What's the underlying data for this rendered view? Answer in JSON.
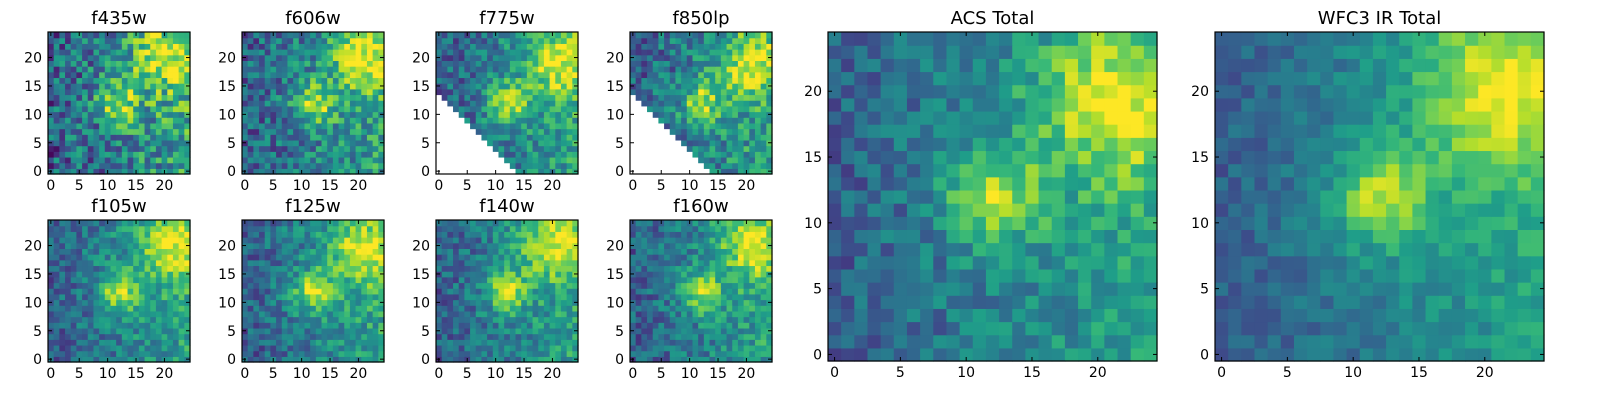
{
  "colormap": "viridis",
  "colormap_stops": [
    "#440154",
    "#482878",
    "#3e4989",
    "#31688e",
    "#26828e",
    "#1f9e89",
    "#35b779",
    "#6ece58",
    "#b5de2b",
    "#fde725"
  ],
  "chart_data": [
    {
      "type": "heatmap",
      "title": "f435w",
      "grid_size": 25,
      "xlim": [
        0,
        24
      ],
      "ylim": [
        0,
        24
      ],
      "xticks": [
        0,
        5,
        10,
        15,
        20
      ],
      "yticks": [
        0,
        5,
        10,
        15,
        20
      ],
      "xtick_labels": [
        "0",
        "5",
        "10",
        "15",
        "20"
      ],
      "ytick_labels": [
        "0",
        "5",
        "10",
        "15",
        "20"
      ],
      "features": {
        "blob": [
          12,
          12,
          2.5
        ],
        "hotspot": [
          20,
          20,
          4
        ],
        "noise": 0.55,
        "masked_triangle": false
      },
      "values_note": "noisy field, bright blob near (12,12) and bright region near (20,20)"
    },
    {
      "type": "heatmap",
      "title": "f606w",
      "grid_size": 25,
      "xlim": [
        0,
        24
      ],
      "ylim": [
        0,
        24
      ],
      "xticks": [
        0,
        5,
        10,
        15,
        20
      ],
      "yticks": [
        0,
        5,
        10,
        15,
        20
      ],
      "xtick_labels": [
        "0",
        "5",
        "10",
        "15",
        "20"
      ],
      "ytick_labels": [
        "0",
        "5",
        "10",
        "15",
        "20"
      ],
      "features": {
        "blob": [
          12,
          12,
          2.5
        ],
        "hotspot": [
          21,
          20,
          4
        ],
        "noise": 0.45,
        "masked_triangle": false
      },
      "values_note": "bright blob near (12,12), bright region upper right"
    },
    {
      "type": "heatmap",
      "title": "f775w",
      "grid_size": 25,
      "xlim": [
        0,
        24
      ],
      "ylim": [
        0,
        24
      ],
      "xticks": [
        0,
        5,
        10,
        15,
        20
      ],
      "yticks": [
        0,
        5,
        10,
        15,
        20
      ],
      "xtick_labels": [
        "0",
        "5",
        "10",
        "15",
        "20"
      ],
      "ytick_labels": [
        "0",
        "5",
        "10",
        "15",
        "20"
      ],
      "features": {
        "blob": [
          12,
          12,
          2.5
        ],
        "hotspot": [
          21,
          19,
          4
        ],
        "noise": 0.4,
        "masked_triangle": true
      },
      "values_note": "lower-left triangle masked (blank), blob near (12,12)"
    },
    {
      "type": "heatmap",
      "title": "f850lp",
      "grid_size": 25,
      "xlim": [
        0,
        24
      ],
      "ylim": [
        0,
        24
      ],
      "xticks": [
        0,
        5,
        10,
        15,
        20
      ],
      "yticks": [
        0,
        5,
        10,
        15,
        20
      ],
      "xtick_labels": [
        "0",
        "5",
        "10",
        "15",
        "20"
      ],
      "ytick_labels": [
        "0",
        "5",
        "10",
        "15",
        "20"
      ],
      "features": {
        "blob": [
          12,
          12,
          2.5
        ],
        "hotspot": [
          21,
          19,
          4
        ],
        "noise": 0.45,
        "masked_triangle": true
      },
      "values_note": "lower-left triangle masked (blank), mostly bright field"
    },
    {
      "type": "heatmap",
      "title": "f105w",
      "grid_size": 25,
      "xlim": [
        0,
        24
      ],
      "ylim": [
        0,
        24
      ],
      "xticks": [
        0,
        5,
        10,
        15,
        20
      ],
      "yticks": [
        0,
        5,
        10,
        15,
        20
      ],
      "xtick_labels": [
        "0",
        "5",
        "10",
        "15",
        "20"
      ],
      "ytick_labels": [
        "0",
        "5",
        "10",
        "15",
        "20"
      ],
      "features": {
        "blob": [
          12,
          12,
          2.5
        ],
        "hotspot": [
          21,
          20,
          4
        ],
        "noise": 0.35,
        "masked_triangle": false
      },
      "values_note": "bright blob near (12,12), bright region upper right, dark lower left"
    },
    {
      "type": "heatmap",
      "title": "f125w",
      "grid_size": 25,
      "xlim": [
        0,
        24
      ],
      "ylim": [
        0,
        24
      ],
      "xticks": [
        0,
        5,
        10,
        15,
        20
      ],
      "yticks": [
        0,
        5,
        10,
        15,
        20
      ],
      "xtick_labels": [
        "0",
        "5",
        "10",
        "15",
        "20"
      ],
      "ytick_labels": [
        "0",
        "5",
        "10",
        "15",
        "20"
      ],
      "features": {
        "blob": [
          12,
          12,
          2.5
        ],
        "hotspot": [
          21,
          19,
          4
        ],
        "noise": 0.35,
        "masked_triangle": false
      },
      "values_note": "diffuse bright field, hotspot upper right"
    },
    {
      "type": "heatmap",
      "title": "f140w",
      "grid_size": 25,
      "xlim": [
        0,
        24
      ],
      "ylim": [
        0,
        24
      ],
      "xticks": [
        0,
        5,
        10,
        15,
        20
      ],
      "yticks": [
        0,
        5,
        10,
        15,
        20
      ],
      "xtick_labels": [
        "0",
        "5",
        "10",
        "15",
        "20"
      ],
      "ytick_labels": [
        "0",
        "5",
        "10",
        "15",
        "20"
      ],
      "features": {
        "blob": [
          12,
          12,
          2.5
        ],
        "hotspot": [
          20,
          20,
          4
        ],
        "noise": 0.35,
        "masked_triangle": false
      },
      "values_note": "bright blob near (12,12), bright region upper right"
    },
    {
      "type": "heatmap",
      "title": "f160w",
      "grid_size": 25,
      "xlim": [
        0,
        24
      ],
      "ylim": [
        0,
        24
      ],
      "xticks": [
        0,
        5,
        10,
        15,
        20
      ],
      "yticks": [
        0,
        5,
        10,
        15,
        20
      ],
      "xtick_labels": [
        "0",
        "5",
        "10",
        "15",
        "20"
      ],
      "ytick_labels": [
        "0",
        "5",
        "10",
        "15",
        "20"
      ],
      "features": {
        "blob": [
          12,
          12,
          2.5
        ],
        "hotspot": [
          21,
          20,
          4
        ],
        "noise": 0.35,
        "masked_triangle": false
      },
      "values_note": "bright blob near (12,12), bright region upper right, dark lower left"
    },
    {
      "type": "heatmap",
      "title": "ACS Total",
      "grid_size": 25,
      "xlim": [
        0,
        24
      ],
      "ylim": [
        0,
        24
      ],
      "xticks": [
        0,
        5,
        10,
        15,
        20
      ],
      "yticks": [
        0,
        5,
        10,
        15,
        20
      ],
      "xtick_labels": [
        "0",
        "5",
        "10",
        "15",
        "20"
      ],
      "ytick_labels": [
        "0",
        "5",
        "10",
        "15",
        "20"
      ],
      "features": {
        "blob": [
          12,
          12,
          2.5
        ],
        "hotspot": [
          21,
          19,
          4
        ],
        "noise": 0.3,
        "masked_triangle": false
      },
      "values_note": "bright blob near (12,12), bright region near (20,19) and right edge"
    },
    {
      "type": "heatmap",
      "title": "WFC3 IR Total",
      "grid_size": 25,
      "xlim": [
        0,
        24
      ],
      "ylim": [
        0,
        24
      ],
      "xticks": [
        0,
        5,
        10,
        15,
        20
      ],
      "yticks": [
        0,
        5,
        10,
        15,
        20
      ],
      "xtick_labels": [
        "0",
        "5",
        "10",
        "15",
        "20"
      ],
      "ytick_labels": [
        "0",
        "5",
        "10",
        "15",
        "20"
      ],
      "features": {
        "blob": [
          12,
          12,
          2.5
        ],
        "hotspot": [
          21,
          20,
          4.5
        ],
        "noise": 0.2,
        "masked_triangle": false
      },
      "values_note": "smooth; bright blob near (12,12), broad bright region upper right, dark lower left"
    }
  ]
}
